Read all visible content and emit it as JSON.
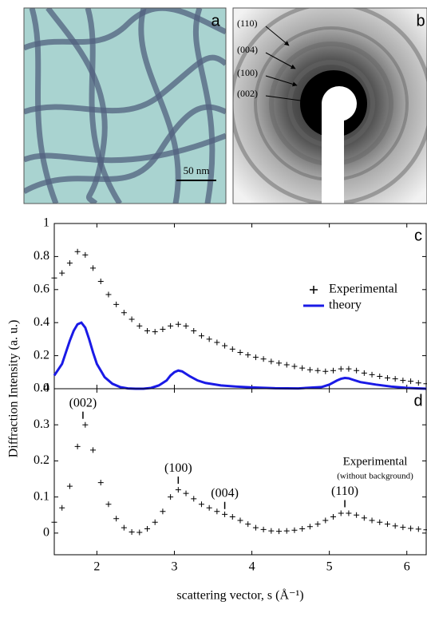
{
  "panels": {
    "a": {
      "label": "a",
      "scale_bar": "50 nm"
    },
    "b": {
      "label": "b",
      "rings": [
        "(110)",
        "(004)",
        "(100)",
        "(002)"
      ]
    }
  },
  "figure": {
    "ylabel": "Diffraction Intensity (a. u.)",
    "xlabel": "scattering vector, s (Å⁻¹)"
  },
  "chart_data": [
    {
      "type": "scatter",
      "label": "c",
      "xlim": [
        1.45,
        6.25
      ],
      "ylim": [
        0,
        1
      ],
      "xticks": [
        2,
        3,
        4,
        5,
        6
      ],
      "yticks": [
        0,
        0.2,
        0.4,
        0.6,
        0.8,
        1
      ],
      "xtick_labels": false,
      "legend": "right",
      "legend_markers": true,
      "series": [
        {
          "name": "Experimental",
          "style": "markers",
          "color": "#000000",
          "x": [
            1.45,
            1.55,
            1.65,
            1.75,
            1.85,
            1.95,
            2.05,
            2.15,
            2.25,
            2.35,
            2.45,
            2.55,
            2.65,
            2.75,
            2.85,
            2.95,
            3.05,
            3.15,
            3.25,
            3.35,
            3.45,
            3.55,
            3.65,
            3.75,
            3.85,
            3.95,
            4.05,
            4.15,
            4.25,
            4.35,
            4.45,
            4.55,
            4.65,
            4.75,
            4.85,
            4.95,
            5.05,
            5.15,
            5.25,
            5.35,
            5.45,
            5.55,
            5.65,
            5.75,
            5.85,
            5.95,
            6.05,
            6.15,
            6.25
          ],
          "values": [
            0.67,
            0.7,
            0.76,
            0.83,
            0.81,
            0.73,
            0.65,
            0.57,
            0.51,
            0.46,
            0.42,
            0.38,
            0.35,
            0.345,
            0.36,
            0.38,
            0.39,
            0.38,
            0.35,
            0.32,
            0.3,
            0.28,
            0.26,
            0.24,
            0.22,
            0.205,
            0.19,
            0.18,
            0.165,
            0.155,
            0.145,
            0.135,
            0.125,
            0.115,
            0.11,
            0.105,
            0.11,
            0.12,
            0.12,
            0.11,
            0.095,
            0.085,
            0.075,
            0.065,
            0.06,
            0.05,
            0.045,
            0.035,
            0.03
          ]
        },
        {
          "name": "theory",
          "style": "line",
          "color": "#1a1ae6",
          "x": [
            1.45,
            1.55,
            1.6,
            1.65,
            1.7,
            1.75,
            1.8,
            1.85,
            1.9,
            1.95,
            2.0,
            2.1,
            2.2,
            2.3,
            2.4,
            2.5,
            2.6,
            2.7,
            2.8,
            2.9,
            2.95,
            3.0,
            3.05,
            3.1,
            3.15,
            3.2,
            3.3,
            3.4,
            3.6,
            3.8,
            4.0,
            4.3,
            4.6,
            4.9,
            5.0,
            5.1,
            5.15,
            5.2,
            5.25,
            5.3,
            5.4,
            5.6,
            5.8,
            6.0,
            6.25
          ],
          "values": [
            0.08,
            0.15,
            0.22,
            0.29,
            0.35,
            0.39,
            0.4,
            0.37,
            0.3,
            0.22,
            0.15,
            0.07,
            0.03,
            0.01,
            0.002,
            0,
            0,
            0.005,
            0.02,
            0.05,
            0.08,
            0.1,
            0.11,
            0.105,
            0.09,
            0.075,
            0.05,
            0.035,
            0.02,
            0.013,
            0.008,
            0.003,
            0.002,
            0.01,
            0.025,
            0.05,
            0.06,
            0.065,
            0.063,
            0.055,
            0.04,
            0.025,
            0.013,
            0.005,
            0
          ]
        }
      ]
    },
    {
      "type": "scatter",
      "label": "d",
      "xlim": [
        1.45,
        6.25
      ],
      "ylim": [
        -0.06,
        0.4
      ],
      "xticks": [
        2,
        3,
        4,
        5,
        6
      ],
      "yticks": [
        0,
        0.1,
        0.2,
        0.3,
        0.4
      ],
      "xtick_labels": true,
      "legend": "right",
      "legend_markers": false,
      "note": "(without background)",
      "series": [
        {
          "name": "Experimental",
          "style": "markers",
          "color": "#000000",
          "x": [
            1.45,
            1.55,
            1.65,
            1.75,
            1.85,
            1.95,
            2.05,
            2.15,
            2.25,
            2.35,
            2.45,
            2.55,
            2.65,
            2.75,
            2.85,
            2.95,
            3.05,
            3.15,
            3.25,
            3.35,
            3.45,
            3.55,
            3.65,
            3.75,
            3.85,
            3.95,
            4.05,
            4.15,
            4.25,
            4.35,
            4.45,
            4.55,
            4.65,
            4.75,
            4.85,
            4.95,
            5.05,
            5.15,
            5.25,
            5.35,
            5.45,
            5.55,
            5.65,
            5.75,
            5.85,
            5.95,
            6.05,
            6.15,
            6.25
          ],
          "values": [
            0.03,
            0.07,
            0.13,
            0.24,
            0.3,
            0.23,
            0.14,
            0.08,
            0.04,
            0.015,
            0.003,
            0.002,
            0.012,
            0.03,
            0.06,
            0.1,
            0.12,
            0.11,
            0.095,
            0.08,
            0.07,
            0.06,
            0.052,
            0.045,
            0.035,
            0.025,
            0.015,
            0.01,
            0.006,
            0.005,
            0.006,
            0.008,
            0.012,
            0.018,
            0.025,
            0.035,
            0.045,
            0.055,
            0.055,
            0.05,
            0.042,
            0.035,
            0.03,
            0.025,
            0.02,
            0.016,
            0.013,
            0.011,
            0.009
          ]
        }
      ],
      "annotations": [
        {
          "text": "(002)",
          "x": 1.82,
          "y": 0.31
        },
        {
          "text": "(100)",
          "x": 3.05,
          "y": 0.13
        },
        {
          "text": "(004)",
          "x": 3.65,
          "y": 0.06
        },
        {
          "text": "(110)",
          "x": 5.2,
          "y": 0.065
        }
      ]
    }
  ]
}
